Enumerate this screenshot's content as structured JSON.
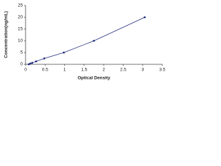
{
  "chart_data": {
    "type": "line",
    "markers": true,
    "xlabel": "Optical Density",
    "ylabel": "Concentration(ng/mL)",
    "x": [
      0.08,
      0.12,
      0.17,
      0.27,
      0.48,
      0.98,
      1.75,
      3.05
    ],
    "series": [
      {
        "color": "#1f2a7a",
        "values": [
          0,
          0.31,
          0.63,
          1.25,
          2.5,
          5,
          10,
          20
        ]
      }
    ],
    "xlim": [
      0,
      3.5
    ],
    "xticks": [
      0,
      0.5,
      1,
      1.5,
      2,
      2.5,
      3,
      3.5
    ],
    "ylim": [
      0,
      25
    ],
    "yticks": [
      0,
      5,
      10,
      15,
      20,
      25
    ]
  }
}
